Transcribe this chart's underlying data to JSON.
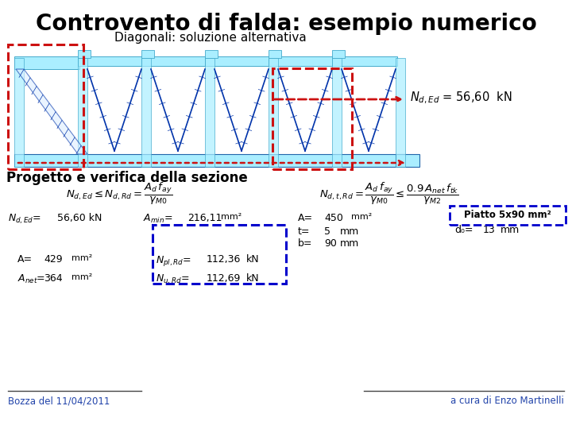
{
  "title": "Controvento di falda: esempio numerico",
  "subtitle": "Diagonali: soluzione alternativa",
  "section_title": "Progetto e verifica della sezione",
  "footer_left": "Bozza del 11/04/2011",
  "footer_right": "a cura di Enzo Martinelli",
  "bg_color": "#ffffff",
  "title_color": "#000000",
  "subtitle_color": "#000000",
  "section_color": "#000000",
  "body_color": "#000000",
  "footer_color": "#2244aa",
  "dashed_box_color": "#0000cc",
  "red_color": "#cc1111",
  "diag_blue": "#0033aa",
  "cyan_fill": "#aaeeff",
  "cyan_edge": "#44aacc",
  "cyan_dark": "#2266aa"
}
